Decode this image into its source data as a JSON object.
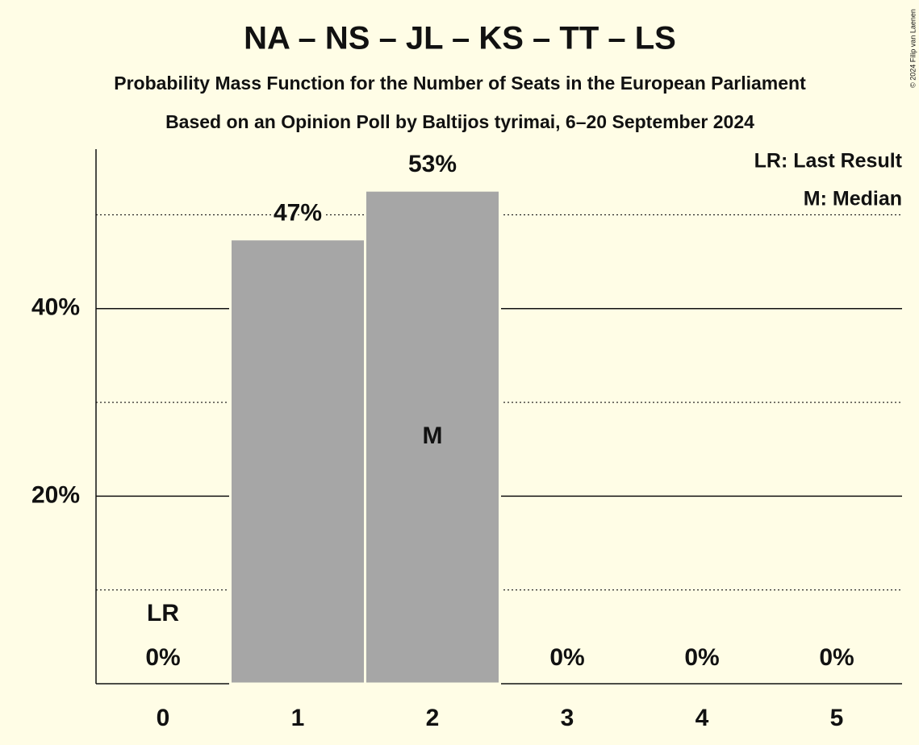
{
  "chart_data": {
    "type": "bar",
    "title": "NA – NS – JL – KS – TT – LS",
    "subtitle": [
      "Probability Mass Function for the Number of Seats in the European Parliament",
      "Based on an Opinion Poll by Baltijos tyrimai, 6–20 September 2024"
    ],
    "categories": [
      "0",
      "1",
      "2",
      "3",
      "4",
      "5"
    ],
    "values": [
      0,
      47.4,
      52.6,
      0,
      0,
      0
    ],
    "value_labels": [
      "0%",
      "47%",
      "53%",
      "0%",
      "0%",
      "0%"
    ],
    "color": "#a6a6a6",
    "ylim": [
      0,
      57
    ],
    "yticks": [
      {
        "value": 20,
        "label": "20%"
      },
      {
        "value": 40,
        "label": "40%"
      }
    ],
    "minor_grid": [
      10,
      30,
      50
    ],
    "grid": true,
    "annotations": [
      {
        "category": "0",
        "text": "LR",
        "position": "above"
      },
      {
        "category": "2",
        "text": "M",
        "position": "inside"
      }
    ],
    "legend": [
      "LR: Last Result",
      "M: Median"
    ],
    "legend_position": "top-right",
    "copyright": "© 2024 Filip van Laenen"
  }
}
